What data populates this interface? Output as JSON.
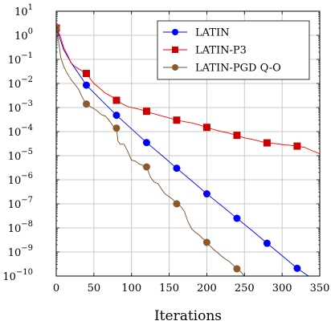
{
  "chart_data": {
    "type": "line",
    "xlabel": "Iterations",
    "ylabel": "",
    "xlim": [
      0,
      350
    ],
    "ylim_exponent": [
      -10,
      1
    ],
    "y_scale": "log",
    "grid": true,
    "legend_position": "top-right",
    "x_ticks": [
      0,
      50,
      100,
      150,
      200,
      250,
      300,
      350
    ],
    "y_ticks": [
      {
        "exp": 1,
        "label": "10",
        "sup": "1"
      },
      {
        "exp": 0,
        "label": "10",
        "sup": "0"
      },
      {
        "exp": -1,
        "label": "10",
        "sup": "−1"
      },
      {
        "exp": -2,
        "label": "10",
        "sup": "−2"
      },
      {
        "exp": -3,
        "label": "10",
        "sup": "−3"
      },
      {
        "exp": -4,
        "label": "10",
        "sup": "−4"
      },
      {
        "exp": -5,
        "label": "10",
        "sup": "−5"
      },
      {
        "exp": -6,
        "label": "10",
        "sup": "−6"
      },
      {
        "exp": -7,
        "label": "10",
        "sup": "−7"
      },
      {
        "exp": -8,
        "label": "10",
        "sup": "−8"
      },
      {
        "exp": -9,
        "label": "10",
        "sup": "−9"
      },
      {
        "exp": -10,
        "label": "10",
        "sup": "−10"
      }
    ],
    "series": [
      {
        "name": "LATIN",
        "color": "#0000ff",
        "marker": "circle",
        "line": [
          [
            0,
            2
          ],
          [
            10,
            0.25
          ],
          [
            20,
            0.07
          ],
          [
            30,
            0.025
          ],
          [
            40,
            0.0085
          ],
          [
            60,
            0.002
          ],
          [
            80,
            0.00048
          ],
          [
            100,
            0.00013
          ],
          [
            120,
            3.5e-05
          ],
          [
            140,
            1.05e-05
          ],
          [
            160,
            3e-06
          ],
          [
            180,
            9e-07
          ],
          [
            200,
            2.6e-07
          ],
          [
            220,
            8.2e-08
          ],
          [
            240,
            2.5e-08
          ],
          [
            260,
            7.8e-09
          ],
          [
            280,
            2.3e-09
          ],
          [
            300,
            7e-10
          ],
          [
            320,
            2.1e-10
          ],
          [
            335,
            1e-10
          ]
        ],
        "markers": [
          [
            0,
            2
          ],
          [
            40,
            0.0085
          ],
          [
            80,
            0.00048
          ],
          [
            120,
            3.5e-05
          ],
          [
            160,
            3e-06
          ],
          [
            200,
            2.6e-07
          ],
          [
            240,
            2.5e-08
          ],
          [
            280,
            2.3e-09
          ],
          [
            320,
            2.1e-10
          ]
        ]
      },
      {
        "name": "LATIN-P3",
        "color": "#ff0000",
        "marker_color": "#cc0000",
        "marker": "square",
        "line": [
          [
            0,
            2
          ],
          [
            5,
            1.0
          ],
          [
            10,
            0.3
          ],
          [
            15,
            0.15
          ],
          [
            20,
            0.07
          ],
          [
            25,
            0.05
          ],
          [
            30,
            0.04
          ],
          [
            35,
            0.032
          ],
          [
            40,
            0.026
          ],
          [
            45,
            0.016
          ],
          [
            50,
            0.01
          ],
          [
            55,
            0.0075
          ],
          [
            60,
            0.0055
          ],
          [
            65,
            0.004
          ],
          [
            70,
            0.0033
          ],
          [
            75,
            0.0027
          ],
          [
            80,
            0.002
          ],
          [
            85,
            0.0016
          ],
          [
            90,
            0.0013
          ],
          [
            95,
            0.0011
          ],
          [
            100,
            0.001
          ],
          [
            110,
            0.00085
          ],
          [
            120,
            0.0007
          ],
          [
            125,
            0.0006
          ],
          [
            130,
            0.00055
          ],
          [
            140,
            0.00045
          ],
          [
            150,
            0.00037
          ],
          [
            160,
            0.0003
          ],
          [
            170,
            0.00026
          ],
          [
            180,
            0.00023
          ],
          [
            190,
            0.00019
          ],
          [
            200,
            0.00015
          ],
          [
            210,
            0.00012
          ],
          [
            220,
            0.0001
          ],
          [
            230,
            8.5e-05
          ],
          [
            240,
            7e-05
          ],
          [
            250,
            5.5e-05
          ],
          [
            260,
            4.8e-05
          ],
          [
            270,
            4e-05
          ],
          [
            280,
            3.4e-05
          ],
          [
            290,
            3.2e-05
          ],
          [
            300,
            2.9e-05
          ],
          [
            310,
            2.7e-05
          ],
          [
            320,
            2.5e-05
          ],
          [
            330,
            2.2e-05
          ],
          [
            340,
            1.6e-05
          ],
          [
            350,
            1.2e-05
          ]
        ],
        "markers": [
          [
            0,
            2
          ],
          [
            40,
            0.026
          ],
          [
            80,
            0.002
          ],
          [
            120,
            0.0007
          ],
          [
            160,
            0.0003
          ],
          [
            200,
            0.00015
          ],
          [
            240,
            7e-05
          ],
          [
            280,
            3.4e-05
          ],
          [
            320,
            2.5e-05
          ]
        ]
      },
      {
        "name": "LATIN-PGD Q-O",
        "color": "#7a4a22",
        "marker_color": "#8b5a2b",
        "marker": "circle",
        "line": [
          [
            0,
            2
          ],
          [
            3,
            0.6
          ],
          [
            6,
            0.12
          ],
          [
            10,
            0.05
          ],
          [
            15,
            0.025
          ],
          [
            20,
            0.014
          ],
          [
            25,
            0.009
          ],
          [
            30,
            0.0055
          ],
          [
            35,
            0.0025
          ],
          [
            40,
            0.0014
          ],
          [
            45,
            0.0011
          ],
          [
            50,
            0.0009
          ],
          [
            55,
            0.0007
          ],
          [
            60,
            0.0005
          ],
          [
            65,
            0.00045
          ],
          [
            70,
            0.0003
          ],
          [
            75,
            0.00018
          ],
          [
            80,
            0.00014
          ],
          [
            82,
            4e-05
          ],
          [
            85,
            3e-05
          ],
          [
            90,
            3e-05
          ],
          [
            95,
            1.5e-05
          ],
          [
            100,
            6.5e-06
          ],
          [
            105,
            6e-06
          ],
          [
            110,
            4.5e-06
          ],
          [
            115,
            4e-06
          ],
          [
            120,
            3.4e-06
          ],
          [
            125,
            1.3e-06
          ],
          [
            130,
            8e-07
          ],
          [
            135,
            7e-07
          ],
          [
            140,
            4e-07
          ],
          [
            145,
            2.5e-07
          ],
          [
            150,
            2e-07
          ],
          [
            155,
            1.5e-07
          ],
          [
            160,
            1e-07
          ],
          [
            165,
            8e-08
          ],
          [
            170,
            5e-08
          ],
          [
            175,
            1.8e-08
          ],
          [
            180,
            9e-09
          ],
          [
            185,
            6.5e-09
          ],
          [
            190,
            5e-09
          ],
          [
            195,
            3.5e-09
          ],
          [
            200,
            2.5e-09
          ],
          [
            205,
            1.7e-09
          ],
          [
            210,
            1.2e-09
          ],
          [
            215,
            9e-10
          ],
          [
            220,
            6.5e-10
          ],
          [
            225,
            5e-10
          ],
          [
            230,
            4e-10
          ],
          [
            235,
            2.8e-10
          ],
          [
            240,
            2e-10
          ],
          [
            245,
            1.5e-10
          ],
          [
            250,
            1e-10
          ]
        ],
        "markers": [
          [
            0,
            2
          ],
          [
            40,
            0.0014
          ],
          [
            80,
            0.00014
          ],
          [
            120,
            3.4e-06
          ],
          [
            160,
            1e-07
          ],
          [
            200,
            2.5e-09
          ],
          [
            240,
            2e-10
          ]
        ]
      }
    ]
  }
}
